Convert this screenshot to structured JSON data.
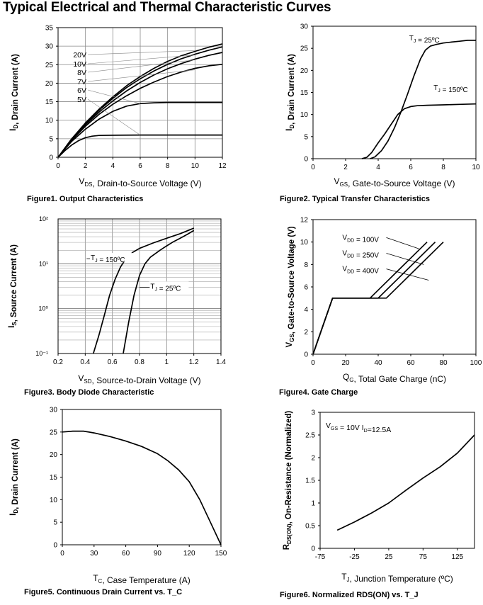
{
  "page": {
    "title": "Typical Electrical and Thermal Characteristic Curves"
  },
  "chart_data": [
    {
      "id": "fig1",
      "type": "line",
      "caption": "Figure1. Output Characteristics",
      "xlabel": "V_DS, Drain-to-Source Voltage (V)",
      "ylabel": "I_D, Drain Current (A)",
      "xlim": [
        0,
        12
      ],
      "ylim": [
        0,
        35
      ],
      "xticks": [
        0,
        2,
        4,
        6,
        8,
        10,
        12
      ],
      "yticks": [
        0,
        5,
        10,
        15,
        20,
        25,
        30,
        35
      ],
      "grid": true,
      "series": [
        {
          "name": "20V",
          "x": [
            0,
            0.5,
            1,
            2,
            3,
            4,
            5,
            6,
            7,
            8,
            9,
            10,
            11,
            12
          ],
          "y": [
            0,
            2.5,
            5,
            9.3,
            13,
            16.3,
            19.3,
            21.8,
            24,
            25.9,
            27.4,
            28.6,
            29.7,
            30.6
          ]
        },
        {
          "name": "10V",
          "x": [
            0,
            0.5,
            1,
            2,
            3,
            4,
            5,
            6,
            7,
            8,
            9,
            10,
            11,
            12
          ],
          "y": [
            0,
            2.5,
            5,
            9.1,
            12.7,
            15.9,
            18.8,
            21.2,
            23.3,
            25.1,
            26.6,
            27.8,
            28.9,
            29.8
          ]
        },
        {
          "name": "8V",
          "x": [
            0,
            0.5,
            1,
            2,
            3,
            4,
            5,
            6,
            7,
            8,
            9,
            10,
            11,
            12
          ],
          "y": [
            0,
            2.4,
            4.8,
            8.8,
            12.2,
            15.2,
            17.9,
            20.2,
            22.2,
            23.9,
            25.3,
            26.5,
            27.5,
            28.3
          ]
        },
        {
          "name": "7V",
          "x": [
            0,
            0.5,
            1,
            2,
            3,
            4,
            5,
            6,
            7,
            8,
            9,
            10,
            11,
            12
          ],
          "y": [
            0,
            2.3,
            4.6,
            8.4,
            11.6,
            14.3,
            16.6,
            18.6,
            20.3,
            21.8,
            23,
            24,
            24.7,
            25.1
          ]
        },
        {
          "name": "6V",
          "x": [
            0,
            0.5,
            1,
            2,
            3,
            4,
            5,
            6,
            7,
            8,
            9,
            10,
            11,
            12
          ],
          "y": [
            0,
            2.2,
            4.3,
            7.6,
            10.3,
            12.4,
            13.8,
            14.5,
            14.7,
            14.8,
            14.8,
            14.8,
            14.8,
            14.8
          ]
        },
        {
          "name": "5V",
          "x": [
            0,
            0.5,
            1,
            1.5,
            2,
            2.5,
            3,
            4,
            6,
            8,
            10,
            12
          ],
          "y": [
            0,
            1.8,
            3.3,
            4.5,
            5.3,
            5.7,
            5.9,
            5.95,
            6,
            6,
            6,
            6
          ]
        }
      ]
    },
    {
      "id": "fig2",
      "type": "line",
      "caption": "Figure2. Typical Transfer Characteristics",
      "xlabel": "V_GS, Gate-to-Source Voltage (V)",
      "ylabel": "I_D, Drain Current (A)",
      "xlim": [
        0,
        10
      ],
      "ylim": [
        0,
        30
      ],
      "xticks": [
        0,
        2,
        4,
        6,
        8,
        10
      ],
      "yticks": [
        0,
        5,
        10,
        15,
        20,
        25,
        30
      ],
      "grid": false,
      "series": [
        {
          "name": "T_J = 25ºC",
          "x": [
            3.5,
            3.8,
            4.2,
            4.6,
            5,
            5.4,
            5.8,
            6.2,
            6.6,
            6.9,
            7.2,
            7.6,
            8,
            8.5,
            9,
            9.5,
            10
          ],
          "y": [
            0,
            0.4,
            1.8,
            4,
            7,
            10.6,
            14.6,
            18.8,
            22.6,
            24.6,
            25.5,
            25.9,
            26.2,
            26.4,
            26.6,
            26.8,
            26.8
          ]
        },
        {
          "name": "T_J = 150ºC",
          "x": [
            3,
            3.3,
            3.6,
            4,
            4.4,
            4.8,
            5.2,
            5.6,
            6,
            6.4,
            7,
            8,
            9,
            10
          ],
          "y": [
            0,
            0.3,
            1.4,
            3.6,
            5.6,
            7.8,
            10,
            11.3,
            11.8,
            12,
            12.1,
            12.2,
            12.3,
            12.4
          ]
        }
      ],
      "annotations": [
        "T_J = 25ºC",
        "T_J = 150ºC"
      ]
    },
    {
      "id": "fig3",
      "type": "line",
      "caption": "Figure3. Body Diode Characteristic",
      "xlabel": "V_SD, Source-to-Drain Voltage (V)",
      "ylabel": "I_S, Source Current (A)",
      "xlim": [
        0.2,
        1.4
      ],
      "ylim": [
        0.1,
        100
      ],
      "yscale": "log",
      "xticks": [
        0.2,
        0.4,
        0.6,
        0.8,
        1,
        1.2,
        1.4
      ],
      "ytick_labels": [
        "10⁻¹",
        "10⁰",
        "10¹",
        "10²"
      ],
      "grid": true,
      "series": [
        {
          "name": "T_J = 150ºC",
          "x": [
            0.46,
            0.5,
            0.54,
            0.58,
            0.62,
            0.66,
            0.7,
            0.75,
            0.8,
            0.9,
            1,
            1.1,
            1.2
          ],
          "y": [
            0.1,
            0.25,
            0.7,
            2,
            4.5,
            8.5,
            13,
            18,
            22,
            29,
            37,
            47,
            62
          ]
        },
        {
          "name": "T_J = 25ºC",
          "x": [
            0.68,
            0.72,
            0.76,
            0.8,
            0.84,
            0.88,
            0.95,
            1,
            1.05,
            1.1,
            1.15,
            1.2
          ],
          "y": [
            0.1,
            0.5,
            2,
            5.5,
            10,
            14,
            20,
            25,
            31,
            37,
            45,
            55
          ]
        }
      ],
      "annotations": [
        "T_J = 150ºC",
        "T_J = 25ºC"
      ]
    },
    {
      "id": "fig4",
      "type": "line",
      "caption": "Figure4. Gate Charge",
      "xlabel": "Q_g, Total Gate Charge (nC)",
      "ylabel": "V_GS, Gate-to-Source Voltage (V)",
      "xlim": [
        0,
        100
      ],
      "ylim": [
        0,
        12
      ],
      "xticks": [
        0,
        20,
        40,
        60,
        80,
        100
      ],
      "yticks": [
        0,
        2,
        4,
        6,
        8,
        10,
        12
      ],
      "grid": false,
      "series": [
        {
          "name": "V_DD = 100V",
          "x": [
            0,
            12,
            35,
            70
          ],
          "y": [
            0,
            5,
            5,
            10
          ]
        },
        {
          "name": "V_DD = 250V",
          "x": [
            0,
            12,
            40,
            75
          ],
          "y": [
            0,
            5,
            5,
            10
          ]
        },
        {
          "name": "V_DD = 400V",
          "x": [
            0,
            12,
            45,
            80
          ],
          "y": [
            0,
            5,
            5,
            10
          ]
        }
      ],
      "annotations": [
        "V_DD = 100V",
        "V_DD = 250V",
        "V_DD = 400V"
      ]
    },
    {
      "id": "fig5",
      "type": "line",
      "caption": "Figure5. Continuous Drain Current vs. T_C",
      "xlabel": "T_C, Case Temperature (A)",
      "ylabel": "I_D, Drain Current (A)",
      "xlim": [
        0,
        150
      ],
      "ylim": [
        0,
        30
      ],
      "xticks": [
        0,
        30,
        60,
        90,
        120,
        150
      ],
      "yticks": [
        0,
        5,
        10,
        15,
        20,
        25,
        30
      ],
      "grid": false,
      "series": [
        {
          "name": "",
          "x": [
            0,
            10,
            20,
            30,
            45,
            60,
            75,
            90,
            100,
            110,
            120,
            130,
            140,
            150
          ],
          "y": [
            25,
            25.2,
            25.2,
            24.8,
            24,
            23,
            21.8,
            20.2,
            18.6,
            16.6,
            14,
            10,
            5,
            0
          ]
        }
      ]
    },
    {
      "id": "fig6",
      "type": "line",
      "caption": "Figure6. Normalized RDS(ON) vs. T_J",
      "xlabel": "T_J, Junction Temperature (ºC)",
      "ylabel": "R_DS(on), On-Resistance (Normalized)",
      "xlim": [
        -75,
        150
      ],
      "ylim": [
        0,
        3
      ],
      "xticks": [
        -75,
        -25,
        25,
        75,
        125
      ],
      "yticks": [
        0,
        0.5,
        1,
        1.5,
        2,
        2.5,
        3
      ],
      "grid": false,
      "series": [
        {
          "name": "",
          "x": [
            -50,
            -25,
            0,
            25,
            50,
            75,
            100,
            125,
            150
          ],
          "y": [
            0.4,
            0.58,
            0.78,
            1.0,
            1.28,
            1.55,
            1.8,
            2.1,
            2.5
          ]
        }
      ],
      "annotations": [
        "V_GS = 10V I_D=12.5A"
      ]
    }
  ]
}
